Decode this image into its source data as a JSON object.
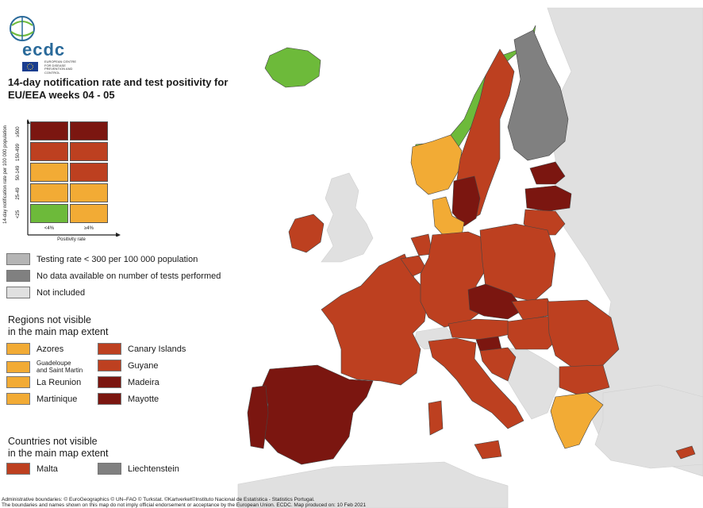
{
  "header": {
    "brand": "ecdc",
    "brand_sub": "EUROPEAN CENTRE FOR DISEASE PREVENTION AND CONTROL",
    "title": "14-day notification rate and test positivity for EU/EEA weeks 04 - 05"
  },
  "matrix": {
    "y_label": "14-day notification rate per 100 000 population",
    "x_label": "Positivity rate",
    "rows": [
      "≥500",
      "150-499",
      "50-149",
      "25-49",
      "<25"
    ],
    "cols": [
      "<4%",
      "≥4%"
    ],
    "cells": [
      [
        "#7b1610",
        "#7b1610"
      ],
      [
        "#bd4020",
        "#bd4020"
      ],
      [
        "#f2ab35",
        "#bd4020"
      ],
      [
        "#f2ab35",
        "#f2ab35"
      ],
      [
        "#6dba3a",
        "#f2ab35"
      ]
    ]
  },
  "legend_misc": [
    {
      "label": "Testing rate < 300 per 100 000 population",
      "color": "#b5b5b5"
    },
    {
      "label": "No data available on number of tests performed",
      "color": "#808080"
    },
    {
      "label": "Not included",
      "color": "#e0e0e0"
    }
  ],
  "regions": {
    "title": "Regions not visible\nin the main map extent",
    "left": [
      {
        "label": "Azores",
        "color": "#f2ab35"
      },
      {
        "label": "Guadeloupe\nand Saint Martin",
        "color": "#f2ab35"
      },
      {
        "label": "La Reunion",
        "color": "#f2ab35"
      },
      {
        "label": "Martinique",
        "color": "#f2ab35"
      }
    ],
    "right": [
      {
        "label": "Canary Islands",
        "color": "#bd4020"
      },
      {
        "label": "Guyane",
        "color": "#bd4020"
      },
      {
        "label": "Madeira",
        "color": "#7b1610"
      },
      {
        "label": "Mayotte",
        "color": "#7b1610"
      }
    ]
  },
  "countries": {
    "title": "Countries not visible\nin the main map extent",
    "items": [
      {
        "label": "Malta",
        "color": "#bd4020"
      },
      {
        "label": "Liechtenstein",
        "color": "#808080"
      }
    ]
  },
  "footer": "Administrative boundaries: © EuroGeographics © UN–FAO © Turkstat. ©Kartverket©Instituto Nacional de Estatística - Statistics Portugal.\nThe boundaries and names shown on this map do not imply official endorsement or acceptance by the European Union. ECDC. Map produced on: 10 Feb 2021",
  "map": {
    "colors": {
      "sea": "#ffffff",
      "land_out": "#e0e0e0",
      "green": "#6dba3a",
      "orange": "#f2ab35",
      "red": "#bd4020",
      "dark": "#7b1610",
      "gray": "#808080"
    },
    "countries": [
      {
        "name": "Iceland",
        "category": "green"
      },
      {
        "name": "Norway",
        "category": "green"
      },
      {
        "name": "Sweden",
        "category": "red"
      },
      {
        "name": "Finland",
        "category": "gray"
      },
      {
        "name": "Denmark",
        "category": "orange"
      },
      {
        "name": "Ireland",
        "category": "red"
      },
      {
        "name": "Portugal",
        "category": "dark"
      },
      {
        "name": "Spain",
        "category": "dark"
      },
      {
        "name": "France",
        "category": "red"
      },
      {
        "name": "Belgium",
        "category": "red"
      },
      {
        "name": "Netherlands",
        "category": "red"
      },
      {
        "name": "Germany",
        "category": "red"
      },
      {
        "name": "Poland",
        "category": "red"
      },
      {
        "name": "Czechia",
        "category": "dark"
      },
      {
        "name": "Austria",
        "category": "red"
      },
      {
        "name": "Slovakia",
        "category": "red"
      },
      {
        "name": "Hungary",
        "category": "red"
      },
      {
        "name": "Romania",
        "category": "red"
      },
      {
        "name": "Bulgaria",
        "category": "red"
      },
      {
        "name": "Greece",
        "category": "orange"
      },
      {
        "name": "Italy",
        "category": "red"
      },
      {
        "name": "Slovenia",
        "category": "dark"
      },
      {
        "name": "Croatia",
        "category": "red"
      },
      {
        "name": "Latvia",
        "category": "dark"
      },
      {
        "name": "Lithuania",
        "category": "red"
      },
      {
        "name": "Estonia",
        "category": "dark"
      },
      {
        "name": "Cyprus",
        "category": "red"
      }
    ]
  }
}
